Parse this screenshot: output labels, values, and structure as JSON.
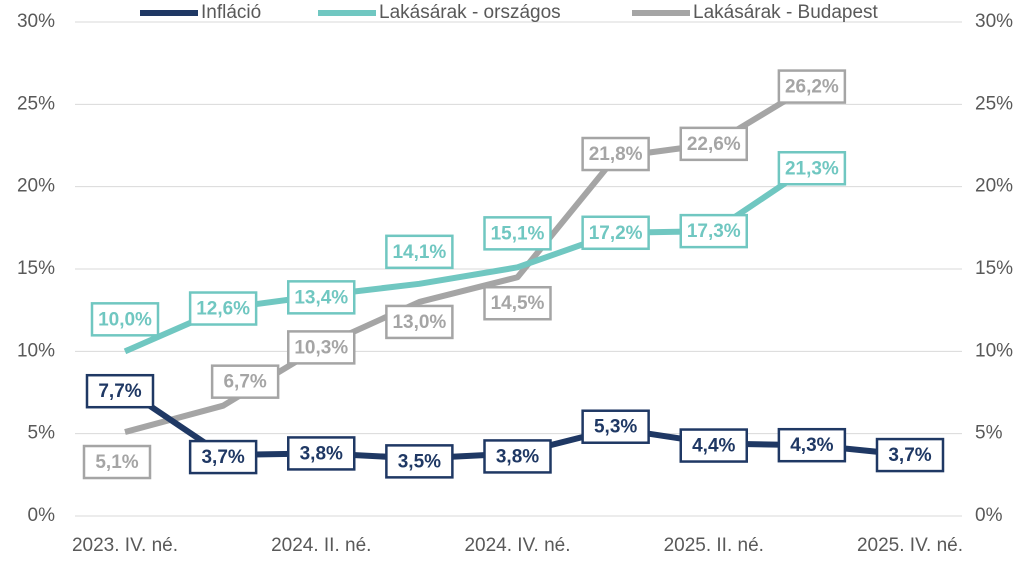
{
  "chart_data": {
    "type": "line",
    "categories": [
      "2023. IV. né.",
      null,
      "2024. II. né.",
      null,
      "2024. IV. né.",
      null,
      "2025. II. né.",
      null,
      "2025. IV. né."
    ],
    "series": [
      {
        "name": "Infláció",
        "color": "#1f3864",
        "axis": "y",
        "values": [
          7.7,
          3.7,
          3.8,
          3.5,
          3.8,
          5.3,
          4.4,
          4.3,
          3.7
        ],
        "value_labels": [
          "7,7%",
          "3,7%",
          "3,8%",
          "3,5%",
          "3,8%",
          "5,3%",
          "4,4%",
          "4,3%",
          "3,7%"
        ]
      },
      {
        "name": "Lakásárak - országos",
        "color": "#70c7c1",
        "axis": "y",
        "values": [
          10.0,
          12.6,
          13.4,
          14.1,
          15.1,
          17.2,
          17.3,
          21.3,
          null
        ],
        "value_labels": [
          "10,0%",
          "12,6%",
          "13,4%",
          "14,1%",
          "15,1%",
          "17,2%",
          "17,3%",
          "21,3%",
          null
        ]
      },
      {
        "name": "Lakásárak - Budapest",
        "color": "#a5a5a5",
        "axis": "y",
        "values": [
          5.1,
          6.7,
          10.3,
          13.0,
          14.5,
          21.8,
          22.6,
          26.2,
          null
        ],
        "value_labels": [
          "5,1%",
          "6,7%",
          "10,3%",
          "13,0%",
          "14,5%",
          "21,8%",
          "22,6%",
          "26,2%",
          null
        ]
      }
    ],
    "ylim": [
      0,
      30
    ],
    "yticks": [
      {
        "value": 0,
        "label": "0%"
      },
      {
        "value": 5,
        "label": "5%"
      },
      {
        "value": 10,
        "label": "10%"
      },
      {
        "value": 15,
        "label": "15%"
      },
      {
        "value": 20,
        "label": "20%"
      },
      {
        "value": 25,
        "label": "25%"
      },
      {
        "value": 30,
        "label": "30%"
      }
    ],
    "y2lim": [
      0,
      30
    ],
    "y2ticks": [
      {
        "value": 0,
        "label": "0%"
      },
      {
        "value": 5,
        "label": "5%"
      },
      {
        "value": 10,
        "label": "10%"
      },
      {
        "value": 15,
        "label": "15%"
      },
      {
        "value": 20,
        "label": "20%"
      },
      {
        "value": 25,
        "label": "25%"
      },
      {
        "value": 30,
        "label": "30%"
      }
    ],
    "grid": true,
    "legend": "top"
  }
}
